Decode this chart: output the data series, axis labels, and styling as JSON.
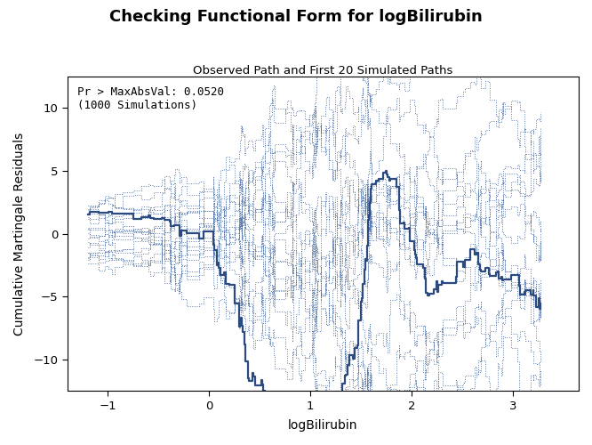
{
  "title": "Checking Functional Form for logBilirubin",
  "subtitle": "Observed Path and First 20 Simulated Paths",
  "xlabel": "logBilirubin",
  "ylabel": "Cumulative Martingale Residuals",
  "annotation_line1": "Pr > MaxAbsVal: 0.0520",
  "annotation_line2": "(1000 Simulations)",
  "xlim": [
    -1.4,
    3.65
  ],
  "ylim": [
    -12.5,
    12.5
  ],
  "xticks": [
    -1,
    0,
    1,
    2,
    3
  ],
  "yticks": [
    -10,
    -5,
    0,
    5,
    10
  ],
  "n_simulated": 20,
  "n_points": 200,
  "observed_color": "#2B4B80",
  "simulated_color": "#4A6EA8",
  "background_color": "#FFFFFF",
  "observed_lw": 1.6,
  "simulated_lw": 0.7,
  "title_fontsize": 13,
  "subtitle_fontsize": 9.5,
  "label_fontsize": 10,
  "tick_fontsize": 9.5,
  "annotation_fontsize": 9
}
